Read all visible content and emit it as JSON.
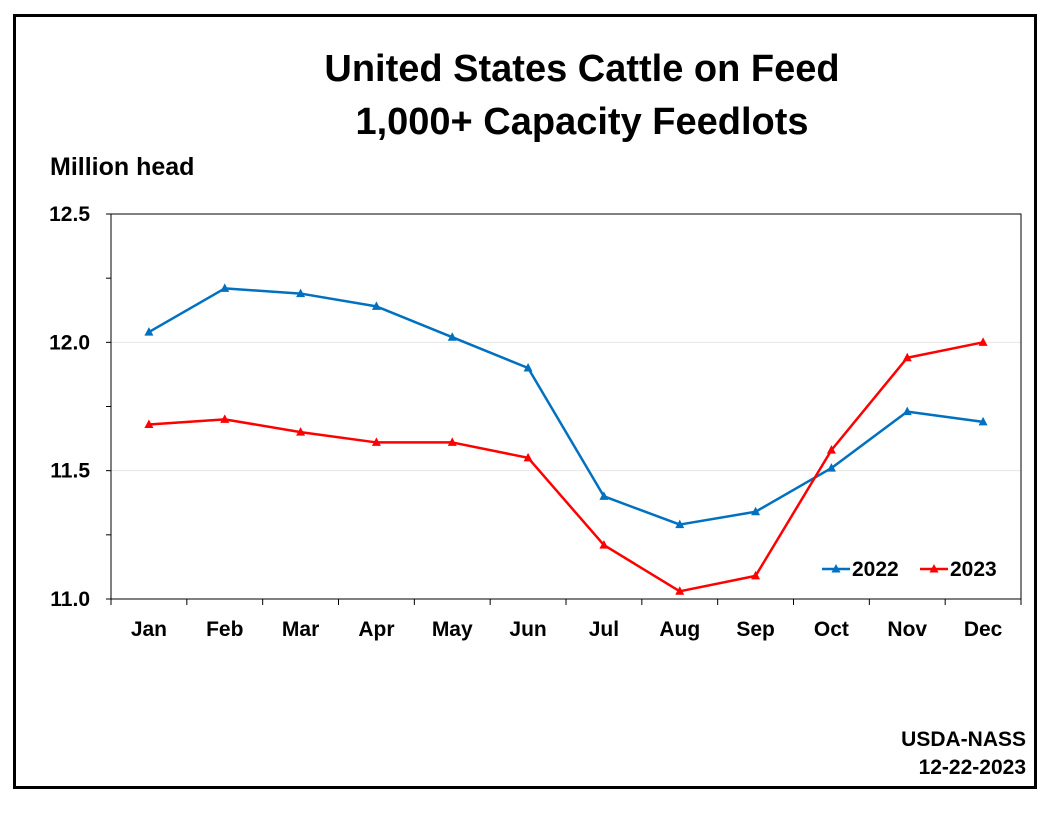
{
  "chart_data": {
    "type": "line",
    "title": "United States Cattle on Feed",
    "subtitle": "1,000+ Capacity Feedlots",
    "ylabel": "Million head",
    "xlabel": "",
    "ylim": [
      11.0,
      12.5
    ],
    "yticks": [
      "11.0",
      "11.5",
      "12.0",
      "12.5"
    ],
    "categories": [
      "Jan",
      "Feb",
      "Mar",
      "Apr",
      "May",
      "Jun",
      "Jul",
      "Aug",
      "Sep",
      "Oct",
      "Nov",
      "Dec"
    ],
    "grid": true,
    "legend_position": "bottom-right",
    "series": [
      {
        "name": "2022",
        "color": "#0070C0",
        "values": [
          12.04,
          12.21,
          12.19,
          12.14,
          12.02,
          11.9,
          11.4,
          11.29,
          11.34,
          11.51,
          11.73,
          11.69
        ]
      },
      {
        "name": "2023",
        "color": "#FF0000",
        "values": [
          11.68,
          11.7,
          11.65,
          11.61,
          11.61,
          11.55,
          11.21,
          11.03,
          11.09,
          11.58,
          11.94,
          12.0
        ]
      }
    ]
  },
  "footer": {
    "source": "USDA-NASS",
    "date": "12-22-2023"
  }
}
